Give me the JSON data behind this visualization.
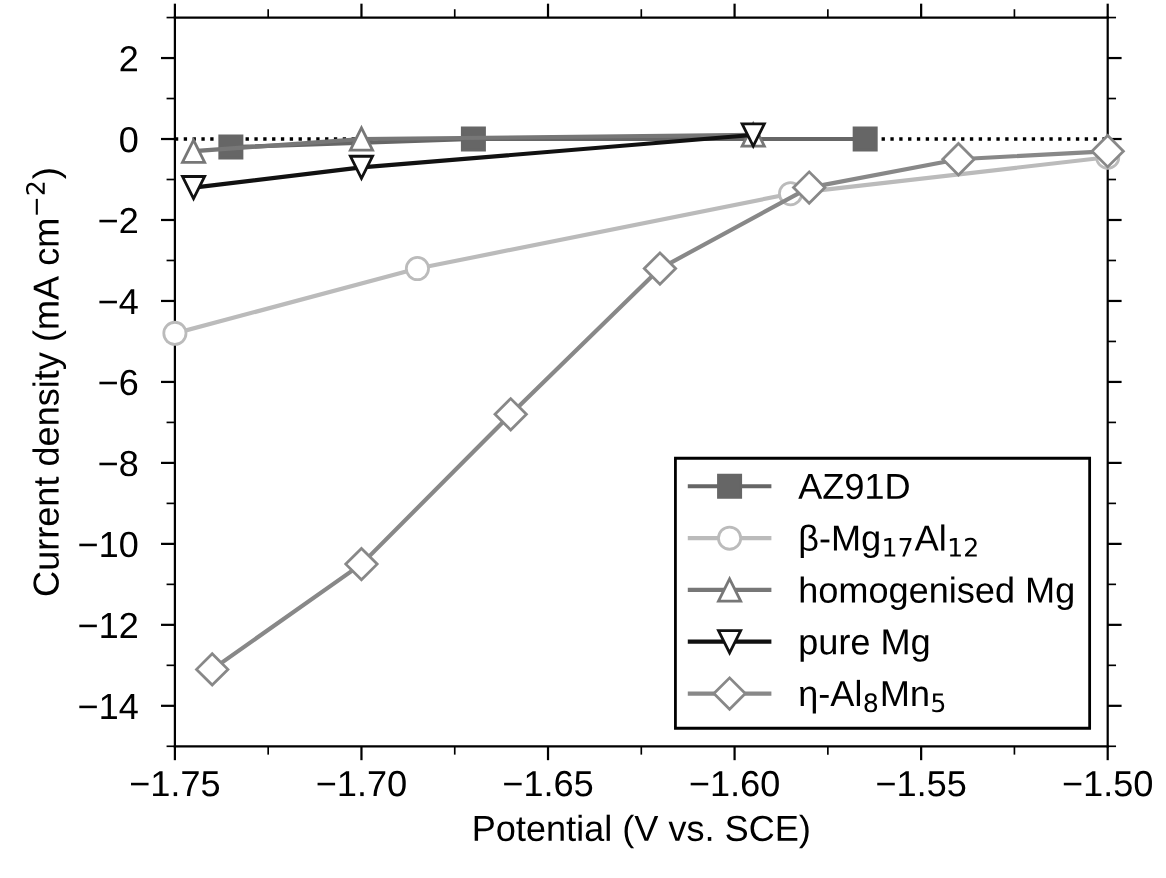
{
  "chart_data": {
    "type": "line",
    "xlabel": "Potential (V vs. SCE)",
    "ylabel": "Current density (mA cm$^{−2}$)",
    "xlim": [
      -1.75,
      -1.5
    ],
    "ylim": [
      -15,
      3
    ],
    "xticks": [
      {
        "value": -1.75,
        "label": "−1.75"
      },
      {
        "value": -1.7,
        "label": "−1.70"
      },
      {
        "value": -1.65,
        "label": "−1.65"
      },
      {
        "value": -1.6,
        "label": "−1.60"
      },
      {
        "value": -1.55,
        "label": "−1.55"
      },
      {
        "value": -1.5,
        "label": "−1.50"
      }
    ],
    "yticks": [
      {
        "value": -14,
        "label": "−14"
      },
      {
        "value": -12,
        "label": "−12"
      },
      {
        "value": -10,
        "label": "−10"
      },
      {
        "value": -8,
        "label": "−8"
      },
      {
        "value": -6,
        "label": "−6"
      },
      {
        "value": -4,
        "label": "−4"
      },
      {
        "value": -2,
        "label": "−2"
      },
      0,
      2
    ],
    "grid": false,
    "legend": "bottom right",
    "ref_lines": [
      {
        "axis": "y",
        "value": 0,
        "color": "#000000",
        "line_style": "dotted"
      }
    ],
    "series": [
      {
        "name": "AZ91D",
        "color": "#666666",
        "marker": "square",
        "x": [
          -1.735,
          -1.67,
          -1.565
        ],
        "values": [
          -0.2,
          0,
          0
        ]
      },
      {
        "name": "β-Mg$_{17}$Al$_{12}$",
        "color": "#bbbbbb",
        "marker": "circle",
        "x": [
          -1.75,
          -1.685,
          -1.585,
          -1.5
        ],
        "values": [
          -4.8,
          -3.2,
          -1.35,
          -0.45
        ]
      },
      {
        "name": "homogenised Mg",
        "color": "#777777",
        "marker": "triangle",
        "x": [
          -1.745,
          -1.7,
          -1.595
        ],
        "values": [
          -0.3,
          0,
          0.1
        ]
      },
      {
        "name": "pure Mg",
        "color": "#111111",
        "marker": "triangle_down",
        "x": [
          -1.745,
          -1.7,
          -1.595
        ],
        "values": [
          -1.2,
          -0.7,
          0.1
        ]
      },
      {
        "name": "η-Al$_{8}$Mn$_{5}$",
        "color": "#888888",
        "marker": "diamond",
        "x": [
          -1.74,
          -1.7,
          -1.66,
          -1.62,
          -1.58,
          -1.54,
          -1.5
        ],
        "values": [
          -13.1,
          -10.5,
          -6.8,
          -3.2,
          -1.2,
          -0.5,
          -0.3
        ]
      }
    ]
  }
}
